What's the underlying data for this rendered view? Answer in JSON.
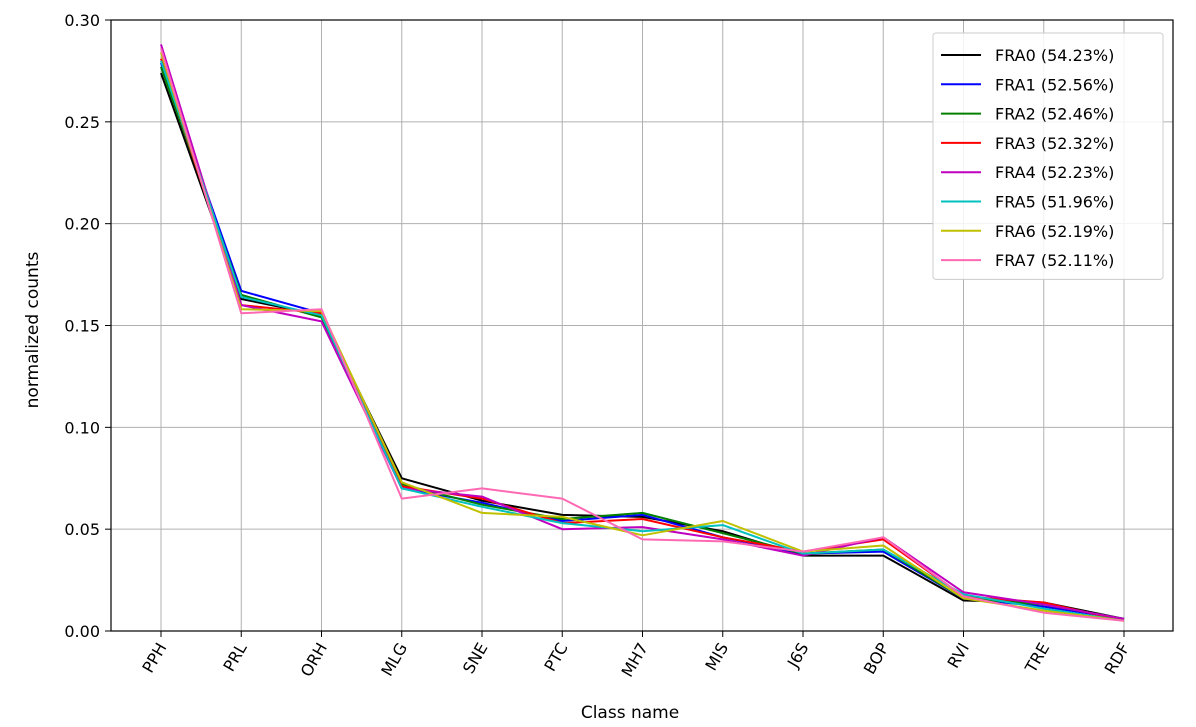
{
  "chart_data": {
    "type": "line",
    "title": "",
    "xlabel": "Class name",
    "ylabel": "normalized counts",
    "ylim": [
      0,
      0.3
    ],
    "yticks": [
      "0.00",
      "0.05",
      "0.10",
      "0.15",
      "0.20",
      "0.25",
      "0.30"
    ],
    "categories": [
      "PPH",
      "PRL",
      "ORH",
      "MLG",
      "SNE",
      "PTC",
      "MH7",
      "MIS",
      "J6S",
      "BOP",
      "RVI",
      "TRE",
      "RDF"
    ],
    "grid": true,
    "legend_position": "top-right",
    "series": [
      {
        "name": "FRA0 (54.23%)",
        "color": "#000000",
        "values": [
          0.274,
          0.163,
          0.155,
          0.075,
          0.064,
          0.057,
          0.056,
          0.049,
          0.037,
          0.037,
          0.015,
          0.014,
          0.006
        ]
      },
      {
        "name": "FRA1 (52.56%)",
        "color": "#0000ff",
        "values": [
          0.279,
          0.167,
          0.156,
          0.07,
          0.063,
          0.054,
          0.057,
          0.046,
          0.038,
          0.039,
          0.016,
          0.012,
          0.006
        ]
      },
      {
        "name": "FRA2 (52.46%)",
        "color": "#008000",
        "values": [
          0.277,
          0.165,
          0.154,
          0.072,
          0.062,
          0.055,
          0.058,
          0.048,
          0.038,
          0.04,
          0.016,
          0.013,
          0.006
        ]
      },
      {
        "name": "FRA3 (52.32%)",
        "color": "#ff0000",
        "values": [
          0.281,
          0.16,
          0.156,
          0.071,
          0.065,
          0.053,
          0.055,
          0.046,
          0.039,
          0.045,
          0.017,
          0.014,
          0.005
        ]
      },
      {
        "name": "FRA4 (52.23%)",
        "color": "#c000c0",
        "values": [
          0.288,
          0.16,
          0.152,
          0.07,
          0.066,
          0.05,
          0.051,
          0.045,
          0.037,
          0.046,
          0.019,
          0.013,
          0.006
        ]
      },
      {
        "name": "FRA5 (51.96%)",
        "color": "#00c0c0",
        "values": [
          0.28,
          0.164,
          0.155,
          0.07,
          0.061,
          0.053,
          0.049,
          0.052,
          0.038,
          0.04,
          0.018,
          0.011,
          0.005
        ]
      },
      {
        "name": "FRA6 (52.19%)",
        "color": "#c0c000",
        "values": [
          0.284,
          0.158,
          0.157,
          0.073,
          0.058,
          0.056,
          0.047,
          0.054,
          0.039,
          0.042,
          0.016,
          0.01,
          0.005
        ]
      },
      {
        "name": "FRA7 (52.11%)",
        "color": "#ff69b4",
        "values": [
          0.286,
          0.156,
          0.158,
          0.065,
          0.07,
          0.065,
          0.045,
          0.044,
          0.039,
          0.046,
          0.017,
          0.009,
          0.005
        ]
      }
    ]
  }
}
